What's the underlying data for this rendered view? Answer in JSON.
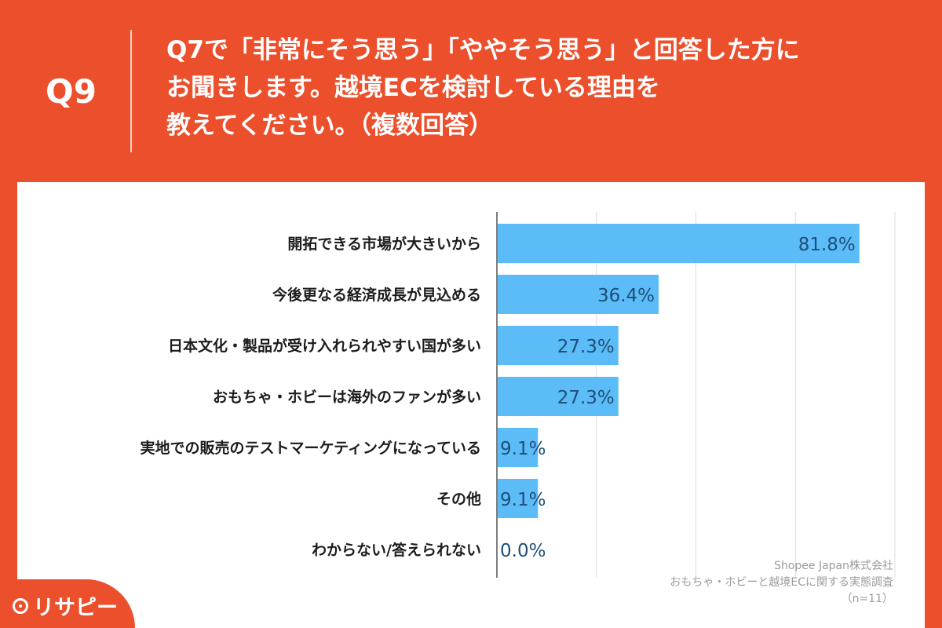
{
  "header": {
    "question_number": "Q9",
    "question_lines": [
      "Q7で「非常にそう思う」「ややそう思う」と回答した方に",
      "お聞きします。越境ECを検討している理由を",
      "教えてください。（複数回答）"
    ]
  },
  "chart_data": {
    "type": "bar",
    "orientation": "horizontal",
    "categories": [
      "開拓できる市場が大きいから",
      "今後更なる経済成長が見込める",
      "日本文化・製品が受け入れられやすい国が多い",
      "おもちゃ・ホビーは海外のファンが多い",
      "実地での販売のテストマーケティングになっている",
      "その他",
      "わからない/答えられない"
    ],
    "values": [
      81.8,
      36.4,
      27.3,
      27.3,
      9.1,
      9.1,
      0.0
    ],
    "value_labels": [
      "81.8%",
      "36.4%",
      "27.3%",
      "27.3%",
      "9.1%",
      "9.1%",
      "0.0%"
    ],
    "xlim": [
      0,
      90
    ],
    "grid": true,
    "bar_color": "#5bbcf7",
    "label_color": "#1f4e79"
  },
  "footer": {
    "lines": [
      "Shopee Japan株式会社",
      "おもちゃ・ホビーと越境ECに関する実態調査",
      "（n=11）"
    ]
  },
  "brand": {
    "logo_text": "リサピー",
    "accent_color": "#ec4f2c"
  }
}
